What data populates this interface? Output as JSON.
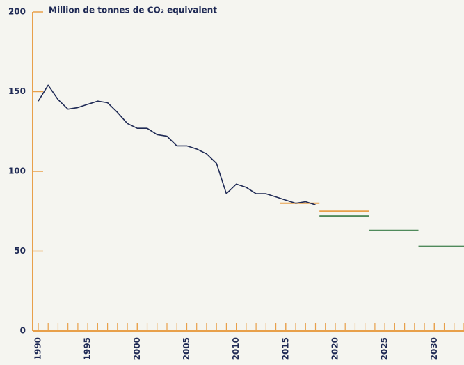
{
  "chart_data": {
    "type": "line",
    "title": "Million de tonnes de CO₂ equivalent",
    "x": [
      1990,
      1991,
      1992,
      1993,
      1994,
      1995,
      1996,
      1997,
      1998,
      1999,
      2000,
      2001,
      2002,
      2003,
      2004,
      2005,
      2006,
      2007,
      2008,
      2009,
      2010,
      2011,
      2012,
      2013,
      2014,
      2015,
      2016,
      2017,
      2018
    ],
    "series": [
      {
        "color": "#1f2a55",
        "values": [
          144,
          154,
          145,
          139,
          140,
          142,
          144,
          143,
          137,
          130,
          127,
          127,
          123,
          122,
          116,
          116,
          114,
          111,
          105,
          86,
          92,
          90,
          86,
          86,
          84,
          82,
          80,
          81,
          79
        ]
      }
    ],
    "segments": [
      {
        "x": [
          2014.4,
          2018.4
        ],
        "value": 80,
        "color": "#e8a04a"
      },
      {
        "x": [
          2018.4,
          2023.4
        ],
        "value": 75,
        "color": "#e8a04a"
      },
      {
        "x": [
          2018.4,
          2023.4
        ],
        "value": 72,
        "color": "#4f8a5b"
      },
      {
        "x": [
          2023.4,
          2028.4
        ],
        "value": 63,
        "color": "#4f8a5b"
      },
      {
        "x": [
          2028.4,
          2033
        ],
        "value": 53,
        "color": "#4f8a5b"
      }
    ],
    "xlim": [
      1989.44,
      2033
    ],
    "xticks": [
      1990,
      1995,
      2000,
      2005,
      2010,
      2015,
      2020,
      2025,
      2030
    ],
    "xminor_step": 1,
    "ylim": [
      0,
      200
    ],
    "yticks": [
      0,
      50,
      100,
      150,
      200
    ],
    "axis_color": "#e8a04a"
  }
}
